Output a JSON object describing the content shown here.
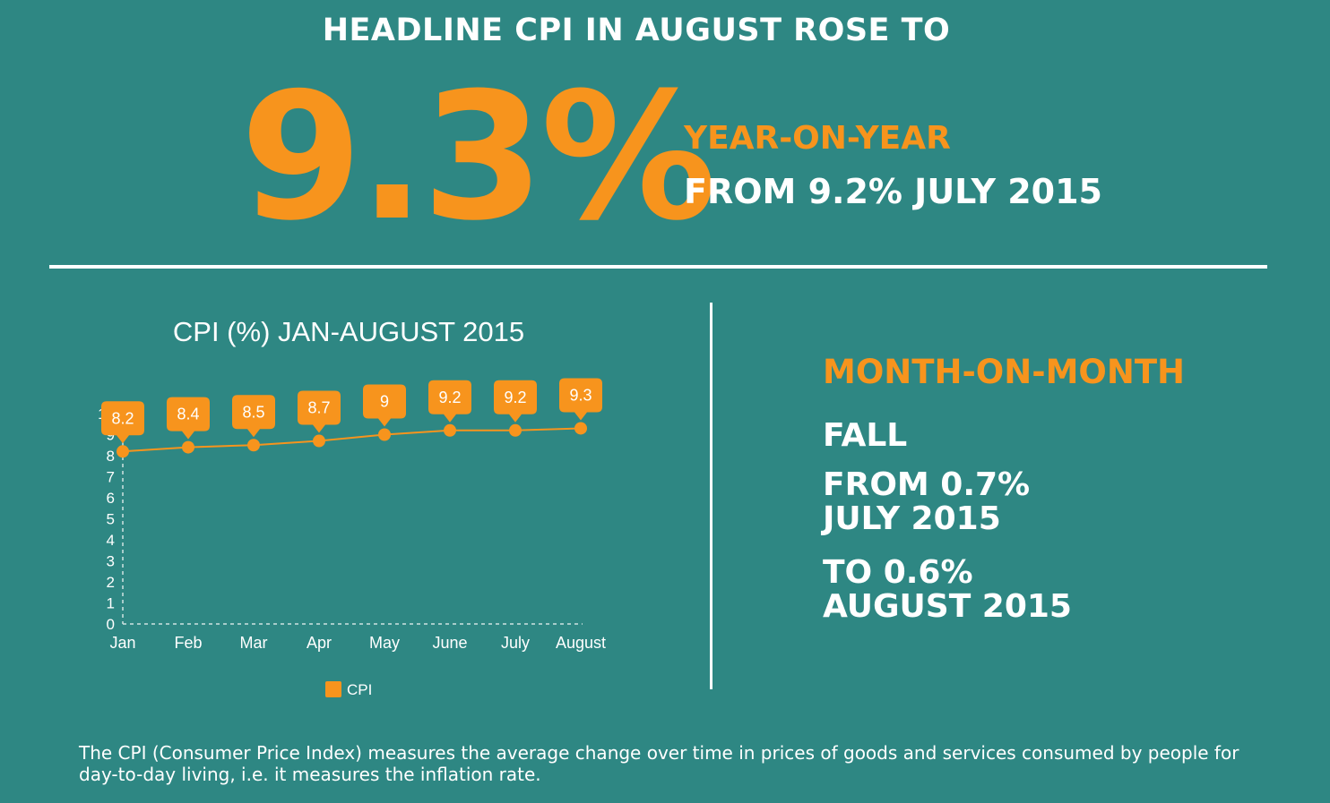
{
  "header": {
    "headline": "HEADLINE CPI IN AUGUST ROSE TO",
    "big_number": "9.3%",
    "yoy_label": "YEAR-ON-YEAR",
    "yoy_from": "FROM 9.2% JULY 2015"
  },
  "month_on_month": {
    "label": "MONTH-ON-MONTH",
    "direction": "FALL",
    "from_line1": "FROM 0.7%",
    "from_line2": "JULY 2015",
    "to_line1": "TO 0.6%",
    "to_line2": "AUGUST 2015"
  },
  "footnote": {
    "line1": "The CPI (Consumer Price Index) measures the average change over time in prices of goods and services consumed by people for",
    "line2": "day-to-day living, i.e. it measures the inflation rate."
  },
  "colors": {
    "background": "#2e8783",
    "accent": "#f7941d",
    "text": "#ffffff"
  },
  "chart_data": {
    "type": "line",
    "title": "CPI (%) JAN-AUGUST 2015",
    "categories": [
      "Jan",
      "Feb",
      "Mar",
      "Apr",
      "May",
      "June",
      "July",
      "August"
    ],
    "series": [
      {
        "name": "CPI",
        "values": [
          8.2,
          8.4,
          8.5,
          8.7,
          9,
          9.2,
          9.2,
          9.3
        ]
      }
    ],
    "data_labels": [
      "8.2",
      "8.4",
      "8.5",
      "8.7",
      "9",
      "9.2",
      "9.2",
      "9.3"
    ],
    "y_ticks": [
      "0",
      "1",
      "2",
      "3",
      "4",
      "5",
      "6",
      "7",
      "8",
      "9",
      "10"
    ],
    "ylim": [
      0,
      10
    ],
    "xlabel": "",
    "ylabel": "",
    "legend": "bottom-center",
    "grid": false
  }
}
